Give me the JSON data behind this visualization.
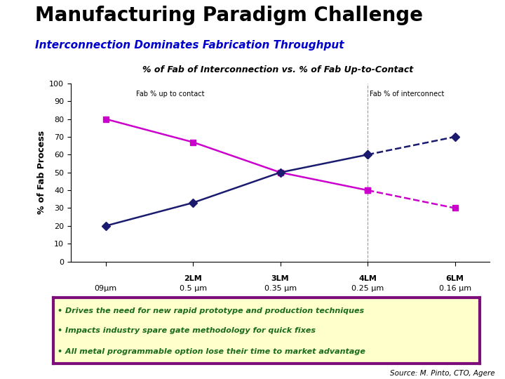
{
  "title": "Manufacturing Paradigm Challenge",
  "subtitle": "Interconnection Dominates Fabrication Throughput",
  "chart_title": "% of Fab of Interconnection vs. % of Fab Up-to-Contact",
  "ylabel": "% of Fab Process",
  "x_positions": [
    0,
    1,
    2,
    3,
    4
  ],
  "x_labels_top": [
    "",
    "2LM",
    "3LM",
    "4LM",
    "6LM"
  ],
  "x_labels_bot": [
    "09μm",
    "0.5 μm",
    "0.35 μm",
    "0.25 μm",
    "0.16 μm"
  ],
  "interconnect_values": [
    20,
    33,
    50,
    60,
    70
  ],
  "contact_values": [
    80,
    67,
    50,
    40,
    30
  ],
  "interconnect_color": "#1a1a6e",
  "contact_color": "#cc00cc",
  "ylim": [
    0,
    100
  ],
  "yticks": [
    0,
    10,
    20,
    30,
    40,
    50,
    60,
    70,
    80,
    90,
    100
  ],
  "label_interconnect": "Fab % of interconnect",
  "label_contact": "Fab % up to contact",
  "bullet_lines": [
    "• Drives the need for new rapid prototype and production techniques",
    "• Impacts industry spare gate methodology for quick fixes",
    "• All metal programmable option lose their time to market advantage"
  ],
  "bullet_bg": "#ffffcc",
  "bullet_border": "#7b0e7b",
  "bullet_text_color": "#1a6b1a",
  "source_text": "Source: M. Pinto, CTO, Agere",
  "title_color": "#000000",
  "subtitle_color": "#0000cc",
  "chart_title_color": "#000000",
  "bg_color": "#ffffff",
  "vline_x": 3,
  "vline_color": "#999999",
  "title_fontsize": 20,
  "subtitle_fontsize": 11,
  "chart_title_fontsize": 9,
  "ylabel_fontsize": 9,
  "ytick_fontsize": 8,
  "xtick_fontsize": 8,
  "annot_fontsize": 7,
  "bullet_fontsize": 8
}
